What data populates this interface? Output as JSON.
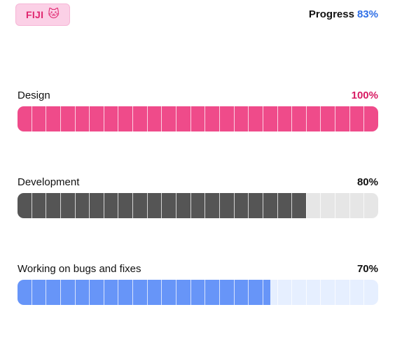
{
  "badge": {
    "label": "FIJI",
    "emoji": "🐱",
    "icon": "cat-face-icon"
  },
  "summary": {
    "label": "Progress",
    "value": "83%"
  },
  "segments_per_bar": 25,
  "tasks": [
    {
      "id": "design",
      "label": "Design",
      "value_text": "100%",
      "progress": 100,
      "fill_color": "#ef4b8a",
      "track_color": "#fde2ef",
      "value_color": "#d81b63"
    },
    {
      "id": "development",
      "label": "Development",
      "value_text": "80%",
      "progress": 80,
      "fill_color": "#555555",
      "track_color": "#e6e6e6",
      "value_color": "#111111"
    },
    {
      "id": "bugs",
      "label": "Working on bugs and fixes",
      "value_text": "70%",
      "progress": 70,
      "fill_color": "#6795f8",
      "track_color": "#e6efff",
      "value_color": "#111111"
    }
  ]
}
